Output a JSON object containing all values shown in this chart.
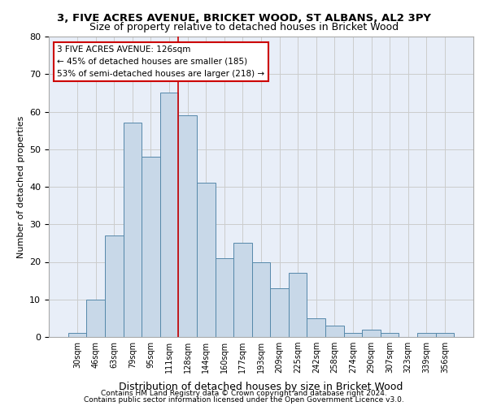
{
  "title1": "3, FIVE ACRES AVENUE, BRICKET WOOD, ST ALBANS, AL2 3PY",
  "title2": "Size of property relative to detached houses in Bricket Wood",
  "xlabel": "Distribution of detached houses by size in Bricket Wood",
  "ylabel": "Number of detached properties",
  "bar_values": [
    1,
    10,
    27,
    57,
    48,
    65,
    59,
    41,
    21,
    25,
    20,
    13,
    17,
    5,
    3,
    1,
    2,
    1,
    0,
    1,
    1
  ],
  "bar_labels": [
    "30sqm",
    "46sqm",
    "63sqm",
    "79sqm",
    "95sqm",
    "111sqm",
    "128sqm",
    "144sqm",
    "160sqm",
    "177sqm",
    "193sqm",
    "209sqm",
    "225sqm",
    "242sqm",
    "258sqm",
    "274sqm",
    "290sqm",
    "307sqm",
    "323sqm",
    "339sqm",
    "356sqm"
  ],
  "bar_color": "#c8d8e8",
  "bar_edge_color": "#5588aa",
  "grid_color": "#cccccc",
  "bg_color": "#e8eef8",
  "annotation_box_color": "#cc0000",
  "property_line_color": "#cc0000",
  "property_bin_index": 6,
  "annotation_line1": "3 FIVE ACRES AVENUE: 126sqm",
  "annotation_line2": "← 45% of detached houses are smaller (185)",
  "annotation_line3": "53% of semi-detached houses are larger (218) →",
  "footer_line1": "Contains HM Land Registry data © Crown copyright and database right 2024.",
  "footer_line2": "Contains public sector information licensed under the Open Government Licence v3.0.",
  "ylim": [
    0,
    80
  ],
  "yticks": [
    0,
    10,
    20,
    30,
    40,
    50,
    60,
    70,
    80
  ]
}
